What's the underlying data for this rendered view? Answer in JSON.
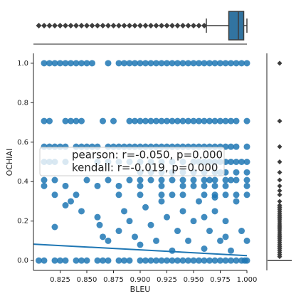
{
  "chart_data": {
    "type": "scatter",
    "xlabel": "BLEU",
    "ylabel": "OCHIAI",
    "color": "#1f77b4",
    "box_color": "#3274a1",
    "outlier_color": "#3d3d3d",
    "annotation": [
      "pearson: r=-0.050, p=0.000",
      "kendall: r=-0.019, p=0.000"
    ],
    "xlim": [
      0.8,
      1.0
    ],
    "ylim": [
      -0.05,
      1.05
    ],
    "xticks": [
      0.825,
      {
        "value": 0.85,
        "label": "0.850"
      },
      0.875,
      {
        "value": 0.9,
        "label": "0.900"
      },
      0.925,
      {
        "value": 0.95,
        "label": "0.950"
      },
      0.975,
      {
        "value": 1.0,
        "label": "1.000"
      }
    ],
    "yticks": [
      {
        "value": 0,
        "label": "0.0"
      },
      0.2,
      0.4,
      0.6,
      0.8,
      {
        "value": 1.0,
        "label": "1.0"
      }
    ],
    "x": [
      0.81,
      0.815,
      0.82,
      0.825,
      0.83,
      0.835,
      0.84,
      0.845,
      0.85,
      0.855,
      0.87,
      0.88,
      0.885,
      0.89,
      0.895,
      0.9,
      0.905,
      0.91,
      0.915,
      0.92,
      0.925,
      0.93,
      0.935,
      0.94,
      0.945,
      0.95,
      0.955,
      0.96,
      0.965,
      0.97,
      0.975,
      0.98,
      0.985,
      0.99,
      0.995,
      1.0,
      0.81,
      0.815,
      0.83,
      0.835,
      0.84,
      0.845,
      0.865,
      0.875,
      0.89,
      0.895,
      0.9,
      0.905,
      0.91,
      0.915,
      0.92,
      0.925,
      0.93,
      0.935,
      0.94,
      0.945,
      0.95,
      0.955,
      0.96,
      0.965,
      0.97,
      0.975,
      0.98,
      0.985,
      0.99,
      1.0,
      0.81,
      0.815,
      0.82,
      0.825,
      0.83,
      0.84,
      0.845,
      0.85,
      0.855,
      0.86,
      0.87,
      0.875,
      0.88,
      0.885,
      0.89,
      0.895,
      0.9,
      0.905,
      0.91,
      0.915,
      0.92,
      0.925,
      0.93,
      0.935,
      0.94,
      0.945,
      0.95,
      0.955,
      0.96,
      0.965,
      0.97,
      0.975,
      0.98,
      0.985,
      0.99,
      1.0,
      0.81,
      0.815,
      0.82,
      0.83,
      0.86,
      0.87,
      0.88,
      0.89,
      0.9,
      0.91,
      0.92,
      0.93,
      0.94,
      0.95,
      0.955,
      0.96,
      0.965,
      0.97,
      0.975,
      0.98,
      0.985,
      0.99,
      0.995,
      1.0,
      0.9,
      0.91,
      0.92,
      0.93,
      0.94,
      0.95,
      0.96,
      0.97,
      0.975,
      0.98,
      0.99,
      1.0,
      0.81,
      0.82,
      0.85,
      0.87,
      0.89,
      0.9,
      0.91,
      0.92,
      0.93,
      0.94,
      0.95,
      0.96,
      0.965,
      0.97,
      0.98,
      0.985,
      0.99,
      1.0,
      0.81,
      0.83,
      0.86,
      0.88,
      0.9,
      0.92,
      0.94,
      0.95,
      0.96,
      0.97,
      0.98,
      1.0,
      0.82,
      0.84,
      0.88,
      0.9,
      0.92,
      0.93,
      0.94,
      0.96,
      0.97,
      0.98,
      0.99,
      1.0,
      0.83,
      0.835,
      0.845,
      0.86,
      0.862,
      0.865,
      0.87,
      0.88,
      0.885,
      0.89,
      0.895,
      0.9,
      0.905,
      0.91,
      0.915,
      0.92,
      0.925,
      0.93,
      0.935,
      0.94,
      0.945,
      0.95,
      0.955,
      0.96,
      0.965,
      0.97,
      0.975,
      0.98,
      0.985,
      0.99,
      0.995,
      1.0,
      0.96,
      0.97,
      0.98,
      0.82,
      0.805,
      0.81,
      0.82,
      0.825,
      0.83,
      0.84,
      0.845,
      0.85,
      0.86,
      0.865,
      0.87,
      0.88,
      0.885,
      0.89,
      0.9,
      0.905,
      0.91,
      0.915,
      0.92,
      0.925,
      0.93,
      0.935,
      0.94,
      0.945,
      0.95,
      0.955,
      0.96,
      0.965,
      0.97,
      0.975,
      0.98,
      0.985,
      0.99,
      0.995,
      0.998,
      1.0
    ],
    "y": [
      1,
      1,
      1,
      1,
      1,
      1,
      1,
      1,
      1,
      1,
      1,
      1,
      1,
      1,
      1,
      1,
      1,
      1,
      1,
      1,
      1,
      1,
      1,
      1,
      1,
      1,
      1,
      1,
      1,
      1,
      1,
      1,
      1,
      1,
      1,
      1,
      0.707,
      0.707,
      0.707,
      0.707,
      0.707,
      0.707,
      0.707,
      0.707,
      0.707,
      0.707,
      0.707,
      0.707,
      0.707,
      0.707,
      0.707,
      0.707,
      0.707,
      0.707,
      0.707,
      0.707,
      0.707,
      0.707,
      0.707,
      0.707,
      0.707,
      0.707,
      0.707,
      0.707,
      0.707,
      0.707,
      0.577,
      0.577,
      0.577,
      0.577,
      0.577,
      0.577,
      0.577,
      0.577,
      0.577,
      0.577,
      0.577,
      0.577,
      0.577,
      0.577,
      0.577,
      0.577,
      0.577,
      0.577,
      0.577,
      0.577,
      0.577,
      0.577,
      0.577,
      0.577,
      0.577,
      0.577,
      0.577,
      0.577,
      0.577,
      0.577,
      0.577,
      0.577,
      0.577,
      0.577,
      0.577,
      0.577,
      0.5,
      0.5,
      0.5,
      0.5,
      0.5,
      0.5,
      0.5,
      0.5,
      0.5,
      0.5,
      0.5,
      0.5,
      0.5,
      0.5,
      0.5,
      0.5,
      0.5,
      0.5,
      0.5,
      0.5,
      0.5,
      0.5,
      0.5,
      0.5,
      0.447,
      0.447,
      0.447,
      0.447,
      0.447,
      0.447,
      0.447,
      0.447,
      0.447,
      0.447,
      0.447,
      0.447,
      0.408,
      0.408,
      0.408,
      0.408,
      0.408,
      0.408,
      0.408,
      0.408,
      0.408,
      0.408,
      0.408,
      0.408,
      0.408,
      0.408,
      0.408,
      0.408,
      0.408,
      0.408,
      0.378,
      0.378,
      0.378,
      0.378,
      0.378,
      0.378,
      0.378,
      0.378,
      0.378,
      0.378,
      0.378,
      0.378,
      0.333,
      0.333,
      0.333,
      0.333,
      0.333,
      0.333,
      0.333,
      0.333,
      0.333,
      0.333,
      0.333,
      0.333,
      0.28,
      0.3,
      0.25,
      0.22,
      0.18,
      0.12,
      0.1,
      0.15,
      0.25,
      0.2,
      0.12,
      0.08,
      0.27,
      0.18,
      0.1,
      0.3,
      0.22,
      0.05,
      0.15,
      0.25,
      0.1,
      0.2,
      0.3,
      0.06,
      0.15,
      0.25,
      0.1,
      0.2,
      0.05,
      0.3,
      0.15,
      0.1,
      0.22,
      0.32,
      0.12,
      0.17,
      0,
      0,
      0,
      0,
      0,
      0,
      0,
      0,
      0,
      0,
      0,
      0,
      0,
      0,
      0,
      0,
      0,
      0,
      0,
      0,
      0,
      0,
      0,
      0,
      0,
      0,
      0,
      0,
      0,
      0,
      0,
      0,
      0,
      0,
      0,
      0
    ],
    "regression": {
      "x": [
        0.8,
        1.0
      ],
      "y": [
        0.083,
        0.025
      ]
    },
    "x_box": {
      "q1": 0.983,
      "median": 0.992,
      "q3": 0.997,
      "whisker_low": 0.962,
      "whisker_high": 1.0,
      "outliers": [
        0.805,
        0.81,
        0.815,
        0.82,
        0.825,
        0.83,
        0.835,
        0.84,
        0.845,
        0.85,
        0.855,
        0.86,
        0.865,
        0.87,
        0.875,
        0.88,
        0.885,
        0.89,
        0.895,
        0.9,
        0.905,
        0.91,
        0.915,
        0.92,
        0.925,
        0.93,
        0.935,
        0.94,
        0.945,
        0.95,
        0.955,
        0.96
      ]
    },
    "y_box": {
      "q1": 0,
      "median": 0,
      "q3": 0,
      "whisker_low": 0,
      "whisker_high": 0,
      "outliers": [
        0.02,
        0.03,
        0.04,
        0.05,
        0.06,
        0.07,
        0.08,
        0.09,
        0.1,
        0.11,
        0.12,
        0.13,
        0.14,
        0.15,
        0.16,
        0.17,
        0.18,
        0.19,
        0.2,
        0.21,
        0.22,
        0.23,
        0.24,
        0.25,
        0.26,
        0.27,
        0.28,
        0.3,
        0.333,
        0.354,
        0.378,
        0.408,
        0.447,
        0.5,
        0.577,
        0.707,
        1.0
      ]
    }
  }
}
